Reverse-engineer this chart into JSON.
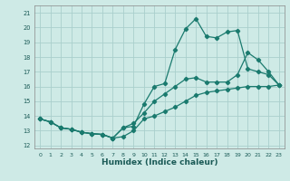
{
  "xlabel": "Humidex (Indice chaleur)",
  "bg_color": "#ceeae6",
  "grid_color": "#aacfcc",
  "line_color": "#1a7a6e",
  "xlim": [
    -0.5,
    23.5
  ],
  "ylim": [
    11.8,
    21.5
  ],
  "yticks": [
    12,
    13,
    14,
    15,
    16,
    17,
    18,
    19,
    20,
    21
  ],
  "xticks": [
    0,
    1,
    2,
    3,
    4,
    5,
    6,
    7,
    8,
    9,
    10,
    11,
    12,
    13,
    14,
    15,
    16,
    17,
    18,
    19,
    20,
    21,
    22,
    23
  ],
  "line1_x": [
    0,
    1,
    2,
    3,
    4,
    5,
    6,
    7,
    8,
    9,
    10,
    11,
    12,
    13,
    14,
    15,
    16,
    17,
    18,
    19,
    20,
    21,
    22,
    23
  ],
  "line1_y": [
    13.8,
    13.6,
    13.2,
    13.1,
    12.9,
    12.8,
    12.75,
    12.5,
    12.6,
    13.0,
    13.8,
    14.0,
    14.3,
    14.6,
    15.0,
    15.4,
    15.6,
    15.7,
    15.8,
    15.9,
    16.0,
    16.0,
    16.0,
    16.1
  ],
  "line2_x": [
    0,
    1,
    2,
    3,
    4,
    5,
    6,
    7,
    8,
    9,
    10,
    11,
    12,
    13,
    14,
    15,
    16,
    17,
    18,
    19,
    20,
    21,
    22,
    23
  ],
  "line2_y": [
    13.8,
    13.6,
    13.2,
    13.1,
    12.9,
    12.8,
    12.75,
    12.5,
    13.2,
    13.5,
    14.2,
    15.0,
    15.5,
    16.0,
    16.5,
    16.6,
    16.3,
    16.3,
    16.3,
    16.8,
    18.3,
    17.8,
    17.0,
    16.1
  ],
  "line3_x": [
    0,
    1,
    2,
    3,
    4,
    5,
    6,
    7,
    8,
    9,
    10,
    11,
    12,
    13,
    14,
    15,
    16,
    17,
    18,
    19,
    20,
    21,
    22,
    23
  ],
  "line3_y": [
    13.8,
    13.6,
    13.2,
    13.1,
    12.9,
    12.8,
    12.75,
    12.5,
    13.2,
    13.3,
    14.8,
    16.0,
    16.2,
    18.5,
    19.9,
    20.6,
    19.4,
    19.3,
    19.7,
    19.8,
    17.2,
    17.0,
    16.8,
    16.1
  ]
}
